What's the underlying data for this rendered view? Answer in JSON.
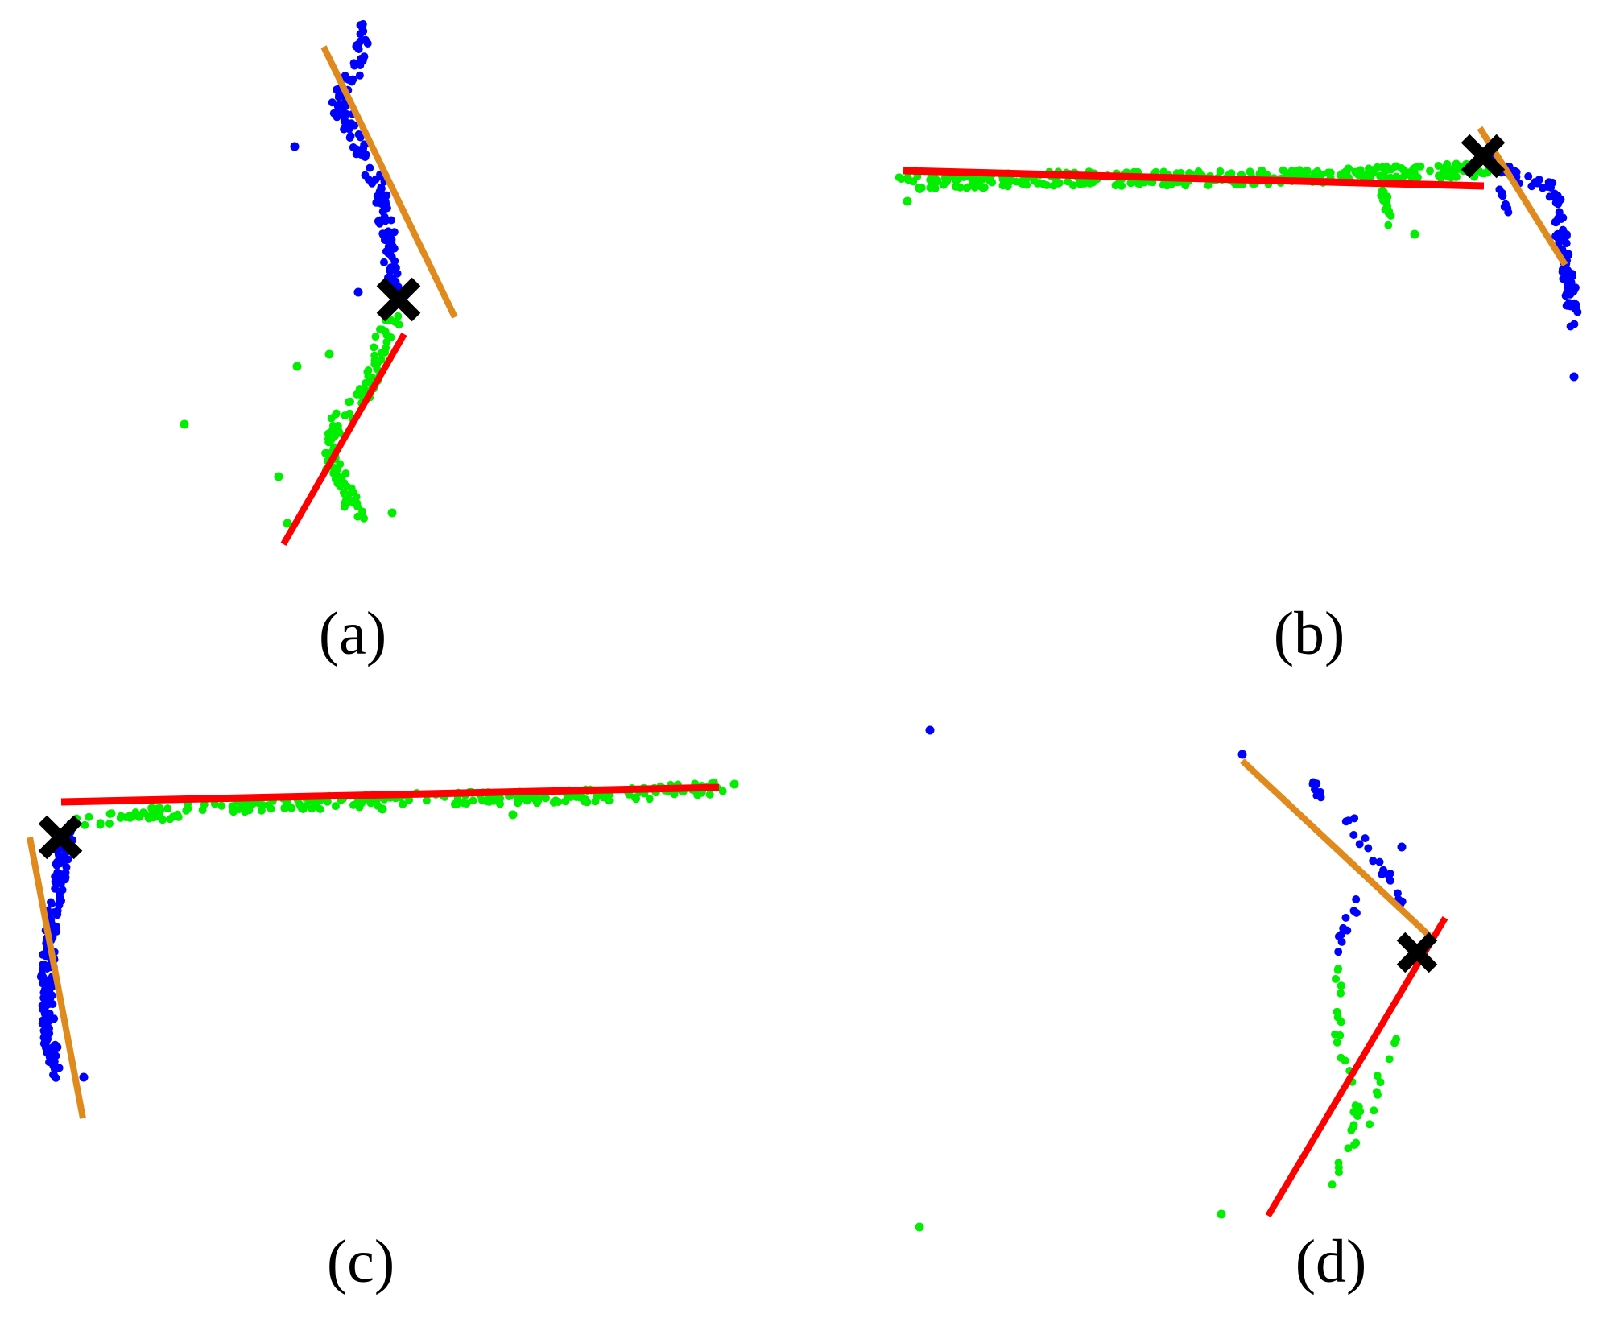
{
  "figure": {
    "panels": [
      {
        "id": "a",
        "caption": "(a)"
      },
      {
        "id": "b",
        "caption": "(b)"
      },
      {
        "id": "c",
        "caption": "(c)"
      },
      {
        "id": "d",
        "caption": "(d)"
      }
    ]
  },
  "colors": {
    "background": "#ffffff",
    "cluster_one_points": "#0000ff",
    "cluster_two_points": "#00ee00",
    "fitted_line_one": "#e08a1e",
    "fitted_line_two": "#ff0000",
    "corner_marker": "#000000"
  },
  "icons": {
    "corner_marker": "x-mark-icon"
  }
}
